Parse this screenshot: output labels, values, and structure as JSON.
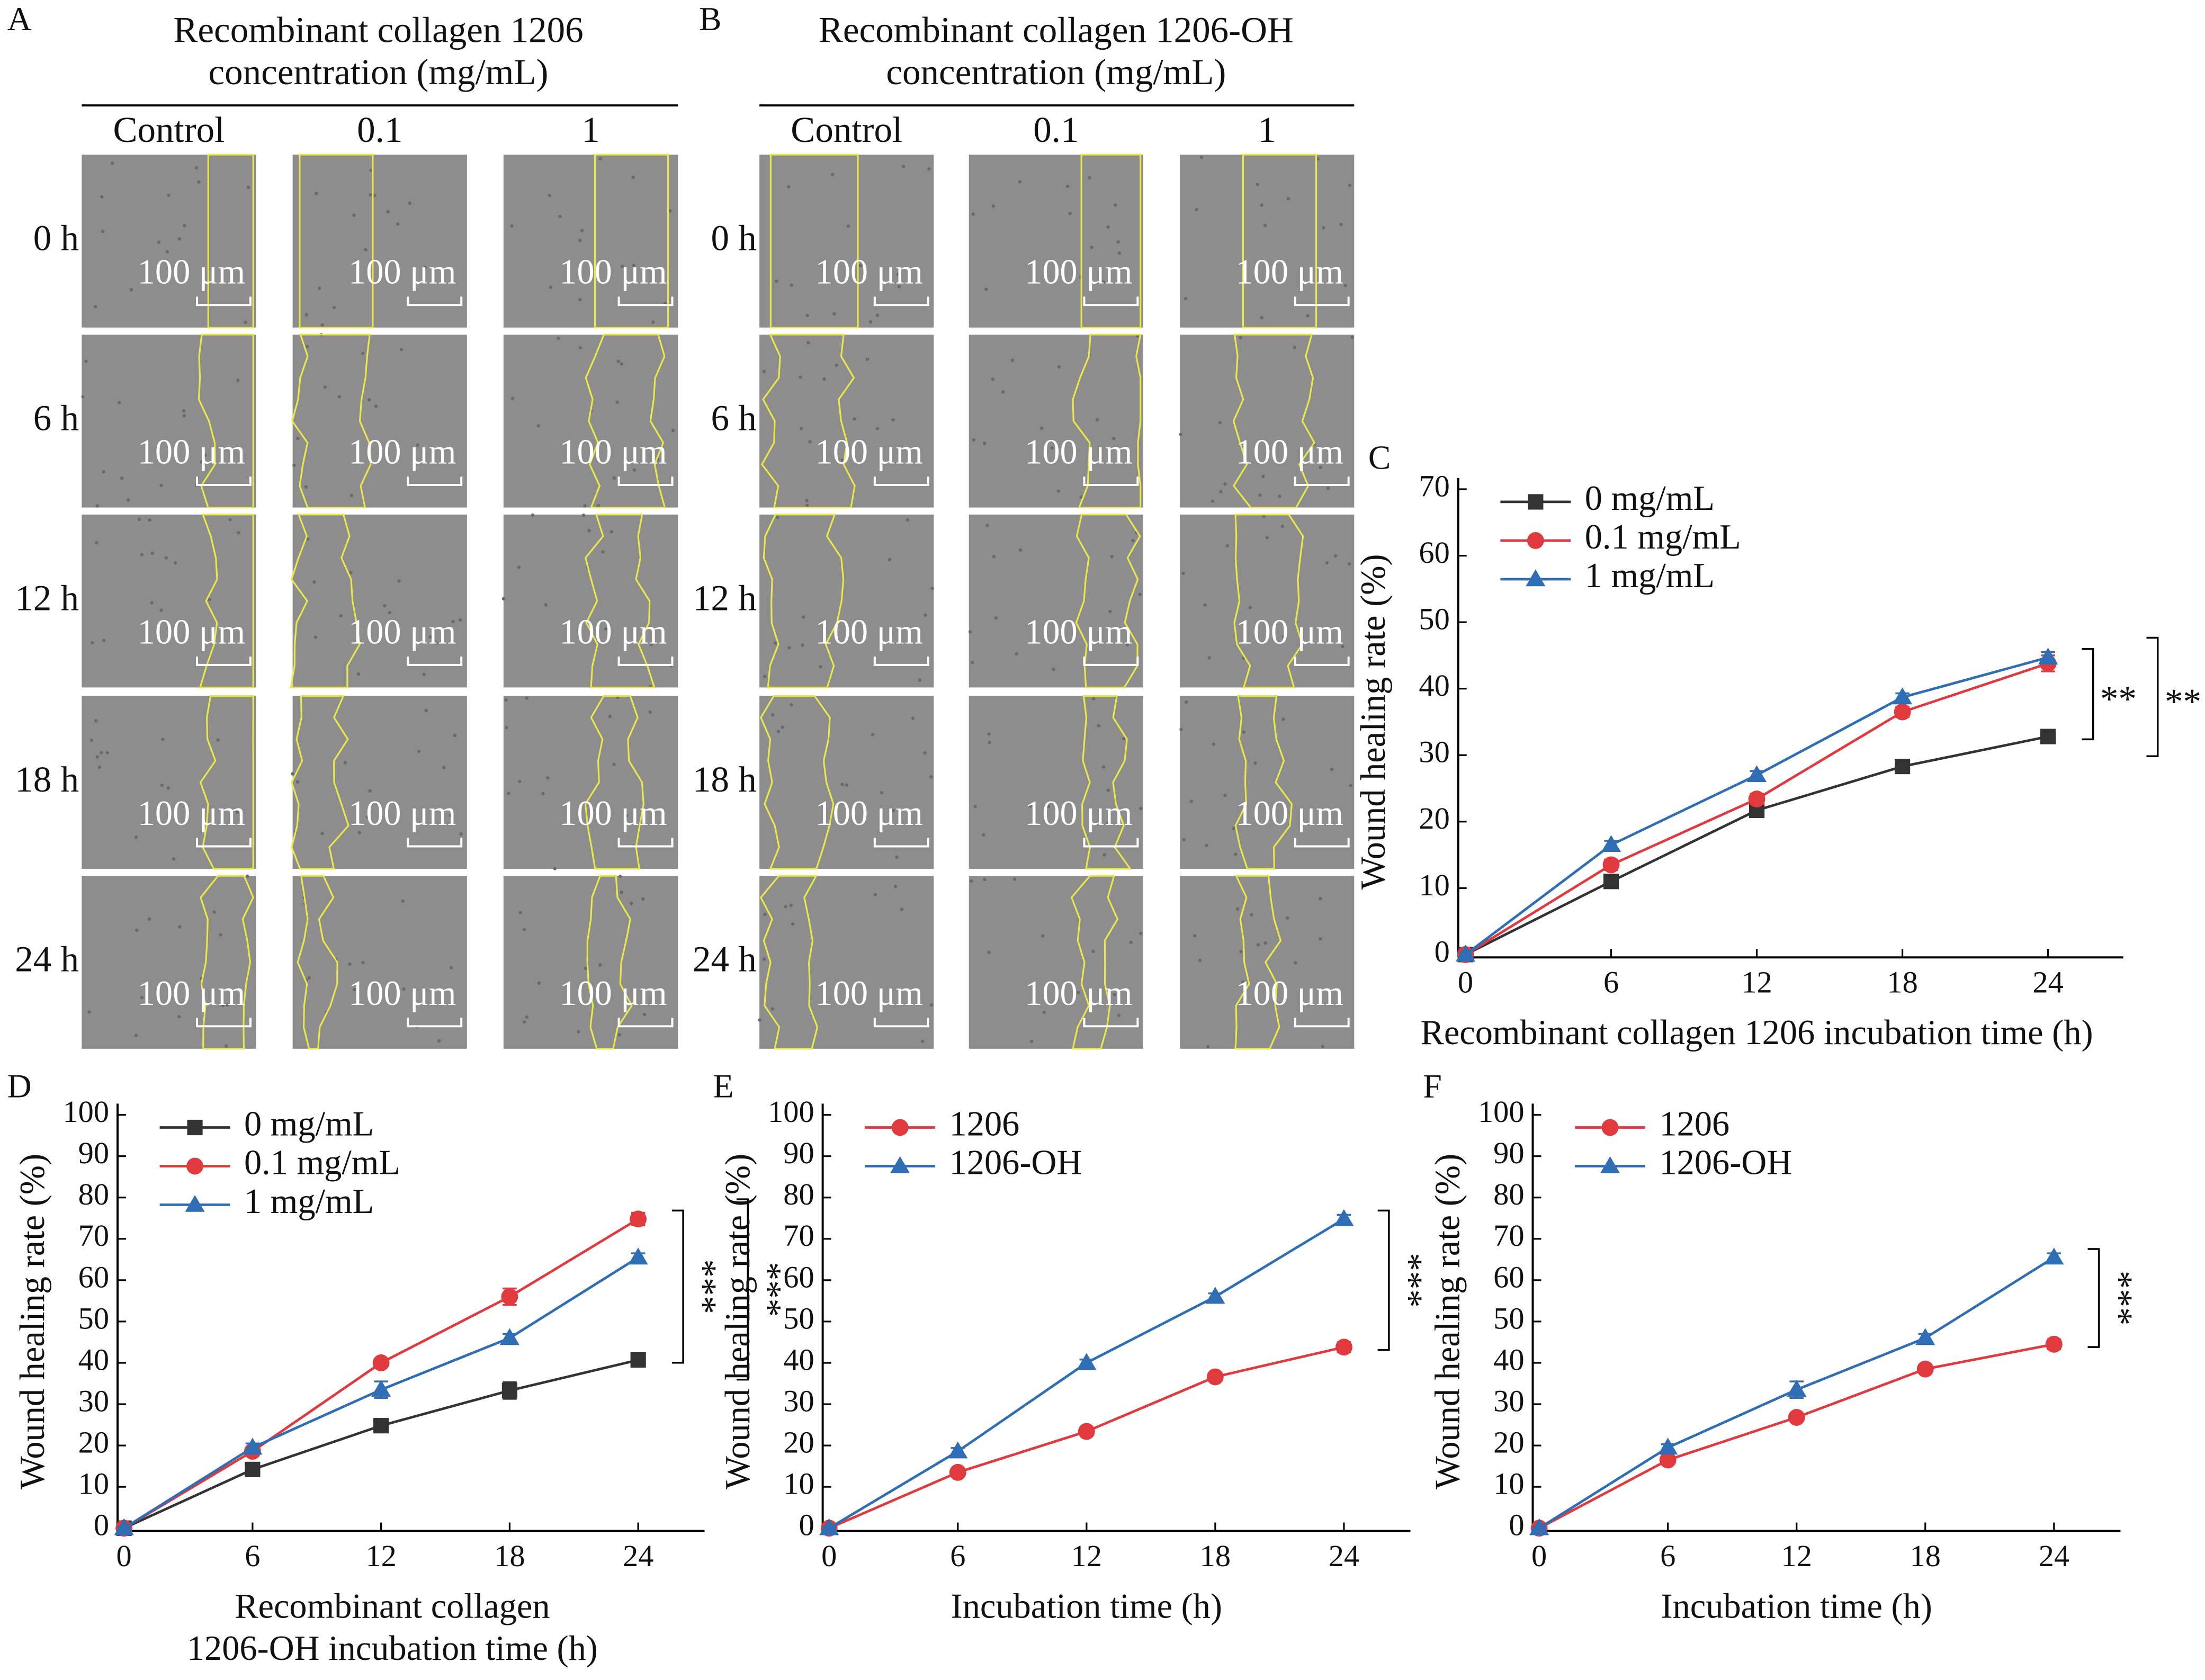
{
  "panels": [
    {
      "label": "A",
      "title": [
        "Recombinant collagen 1206",
        "concentration (mg/mL)"
      ],
      "columns": [
        "Control",
        "0.1",
        "1"
      ],
      "rows": [
        "0 h",
        "6 h",
        "12 h",
        "18 h",
        "24 h"
      ],
      "scale_bar": "100 μm"
    },
    {
      "label": "B",
      "title": [
        "Recombinant collagen 1206-OH",
        "concentration (mg/mL)"
      ],
      "columns": [
        "Control",
        "0.1",
        "1"
      ],
      "rows": [
        "0 h",
        "6 h",
        "12 h",
        "18 h",
        "24 h"
      ],
      "scale_bar": "100 μm"
    }
  ],
  "chart_data": [
    {
      "type": "line",
      "panel_label": "C",
      "xlabel": [
        "Recombinant collagen 1206 incubation time (h)"
      ],
      "ylabel": "Wound healing rate (%)",
      "x": [
        0,
        6,
        12,
        18,
        24
      ],
      "xlim": [
        -0.3,
        27.1
      ],
      "ylim": [
        0,
        70
      ],
      "xticks": [
        0,
        6,
        12,
        18,
        24
      ],
      "yticks": [
        0,
        10,
        20,
        30,
        40,
        50,
        60,
        70
      ],
      "legend": "upper left",
      "annotations": [
        "**",
        "**"
      ],
      "series": [
        {
          "name": "0 mg/mL",
          "color": "#333333",
          "marker": "square",
          "values": [
            0,
            11,
            21.7,
            28.3,
            32.8
          ],
          "errors": [
            0.3,
            0.8,
            0.8,
            0.8,
            1
          ]
        },
        {
          "name": "0.1 mg/mL",
          "color": "#e0393e",
          "marker": "circle",
          "values": [
            0,
            13.5,
            23.4,
            36.5,
            43.8
          ],
          "errors": [
            0.3,
            0.8,
            0.8,
            0.8,
            1.2
          ]
        },
        {
          "name": "1 mg/mL",
          "color": "#2f6db5",
          "marker": "triangle",
          "values": [
            0,
            16.5,
            27,
            38.7,
            44.7
          ],
          "errors": [
            0.3,
            0.6,
            0.6,
            0.6,
            0.8
          ]
        }
      ]
    },
    {
      "type": "line",
      "panel_label": "D",
      "xlabel": [
        "Recombinant collagen",
        "1206-OH incubation time (h)"
      ],
      "ylabel": "Wound healing rate (%)",
      "x": [
        0,
        6,
        12,
        18,
        24
      ],
      "xlim": [
        -0.3,
        27.1
      ],
      "ylim": [
        0,
        100
      ],
      "xticks": [
        0,
        6,
        12,
        18,
        24
      ],
      "yticks": [
        0,
        10,
        20,
        30,
        40,
        50,
        60,
        70,
        80,
        90,
        100
      ],
      "legend": "upper left",
      "annotations": [
        "***",
        "***"
      ],
      "series": [
        {
          "name": "0 mg/mL",
          "color": "#333333",
          "marker": "square",
          "values": [
            0,
            14.2,
            24.8,
            33.3,
            40.7
          ],
          "errors": [
            0.3,
            1,
            1,
            2,
            1.2
          ]
        },
        {
          "name": "0.1 mg/mL",
          "color": "#e0393e",
          "marker": "circle",
          "values": [
            0,
            18.6,
            40,
            56,
            74.8
          ],
          "errors": [
            0.3,
            1,
            1,
            2,
            1.5
          ]
        },
        {
          "name": "1 mg/mL",
          "color": "#2f6db5",
          "marker": "triangle",
          "values": [
            0,
            19.5,
            33.5,
            46,
            65.5
          ],
          "errors": [
            0.3,
            1,
            2,
            1,
            1
          ]
        }
      ]
    },
    {
      "type": "line",
      "panel_label": "E",
      "xlabel": [
        "Incubation time (h)"
      ],
      "ylabel": "Wound healing rate (%)",
      "x": [
        0,
        6,
        12,
        18,
        24
      ],
      "xlim": [
        -0.3,
        27.1
      ],
      "ylim": [
        0,
        100
      ],
      "xticks": [
        0,
        6,
        12,
        18,
        24
      ],
      "yticks": [
        0,
        10,
        20,
        30,
        40,
        50,
        60,
        70,
        80,
        90,
        100
      ],
      "legend": "upper left",
      "annotations": [
        "***"
      ],
      "series": [
        {
          "name": "1206",
          "color": "#e0393e",
          "marker": "circle",
          "values": [
            0,
            13.5,
            23.4,
            36.6,
            43.8
          ],
          "errors": [
            0.3,
            0.8,
            0.8,
            1,
            1.2
          ]
        },
        {
          "name": "1206-OH",
          "color": "#2f6db5",
          "marker": "triangle",
          "values": [
            0,
            18.6,
            40,
            56,
            74.8
          ],
          "errors": [
            0.3,
            0.8,
            0.8,
            0.8,
            1
          ]
        }
      ]
    },
    {
      "type": "line",
      "panel_label": "F",
      "xlabel": [
        "Incubation time (h)"
      ],
      "ylabel": "Wound healing rate (%)",
      "x": [
        0,
        6,
        12,
        18,
        24
      ],
      "xlim": [
        -0.3,
        27.1
      ],
      "ylim": [
        0,
        100
      ],
      "xticks": [
        0,
        6,
        12,
        18,
        24
      ],
      "yticks": [
        0,
        10,
        20,
        30,
        40,
        50,
        60,
        70,
        80,
        90,
        100
      ],
      "legend": "upper left",
      "annotations": [
        "***"
      ],
      "series": [
        {
          "name": "1206",
          "color": "#e0393e",
          "marker": "circle",
          "values": [
            0,
            16.5,
            26.8,
            38.5,
            44.5
          ],
          "errors": [
            0.3,
            0.8,
            0.8,
            1,
            1.2
          ]
        },
        {
          "name": "1206-OH",
          "color": "#2f6db5",
          "marker": "triangle",
          "values": [
            0,
            19.5,
            33.5,
            46,
            65.5
          ],
          "errors": [
            0.3,
            0.8,
            2,
            1,
            1
          ]
        }
      ]
    }
  ]
}
